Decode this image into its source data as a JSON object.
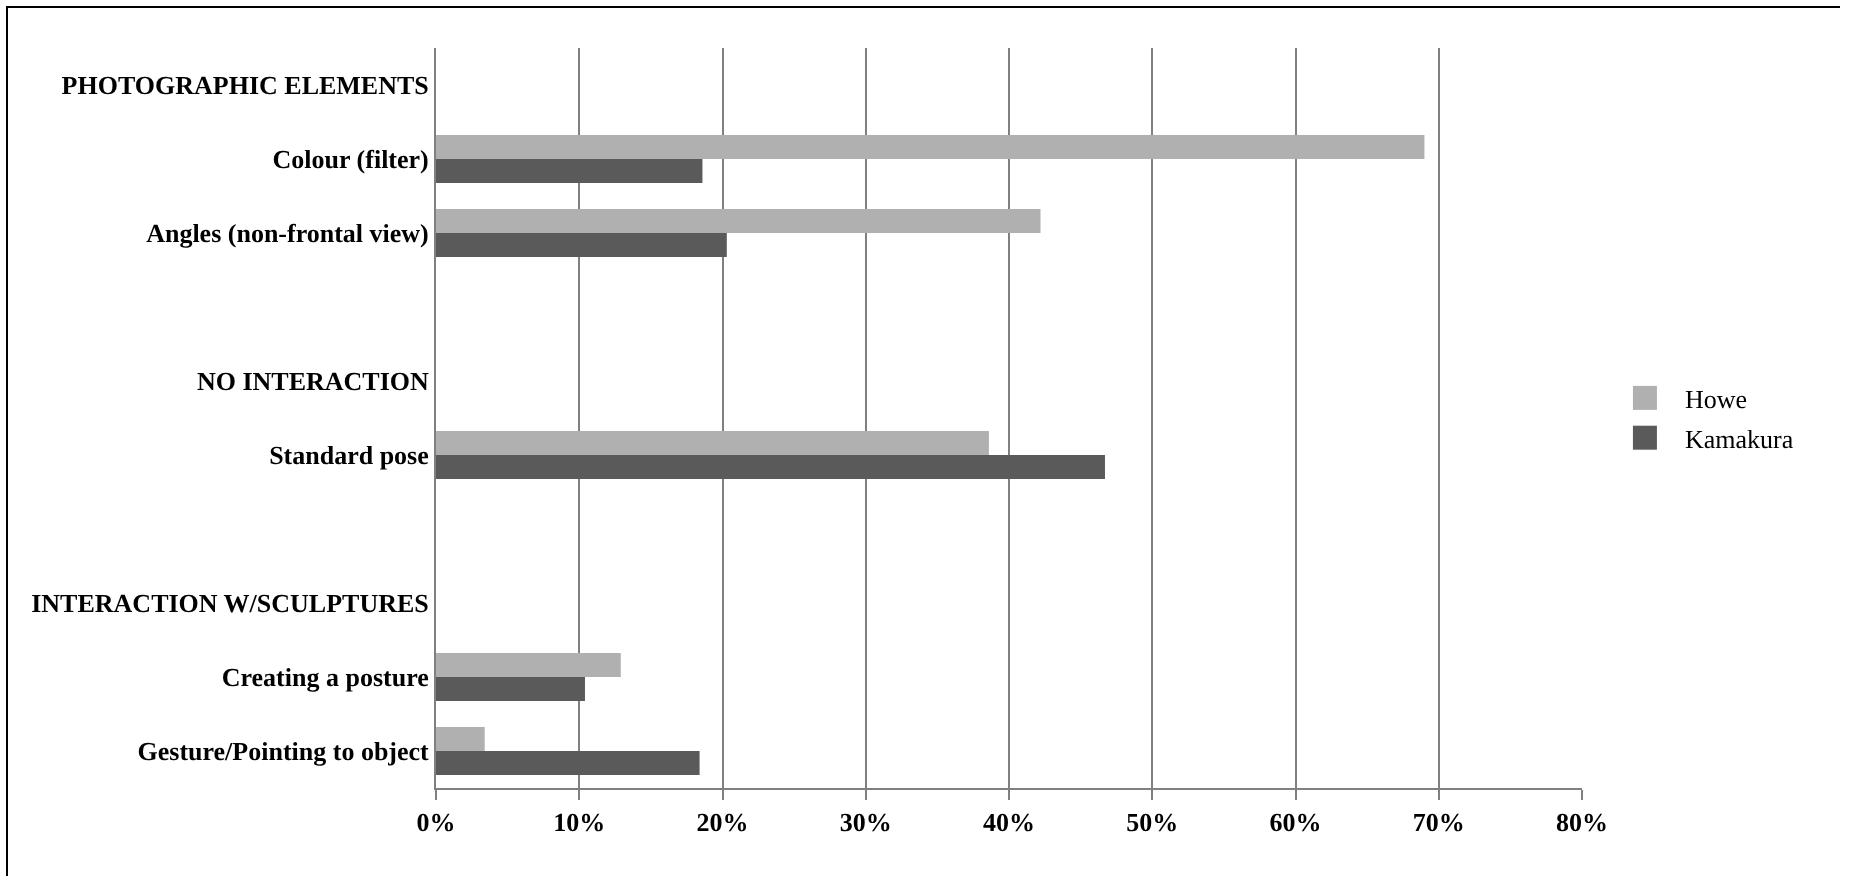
{
  "chart_data": {
    "type": "bar",
    "orientation": "horizontal",
    "categories": [
      "PHOTOGRAPHIC ELEMENTS",
      "Colour (filter)",
      "Angles (non-frontal view)",
      null,
      "NO INTERACTION",
      "Standard pose",
      null,
      "INTERACTION W/SCULPTURES",
      "Creating a posture",
      "Gesture/Pointing to object"
    ],
    "series": [
      {
        "name": "Howe",
        "color": "#b0b0b0",
        "values": [
          null,
          69,
          42.2,
          null,
          null,
          38.6,
          null,
          null,
          12.9,
          3.4
        ]
      },
      {
        "name": "Kamakura",
        "color": "#5a5a5a",
        "values": [
          null,
          18.6,
          20.3,
          null,
          null,
          46.7,
          null,
          null,
          10.4,
          18.4
        ]
      }
    ],
    "xlim": [
      0,
      80
    ],
    "xticks": [
      {
        "value": 0,
        "label": "0%"
      },
      {
        "value": 10,
        "label": "10%"
      },
      {
        "value": 20,
        "label": "20%"
      },
      {
        "value": 30,
        "label": "30%"
      },
      {
        "value": 40,
        "label": "40%"
      },
      {
        "value": 50,
        "label": "50%"
      },
      {
        "value": 60,
        "label": "60%"
      },
      {
        "value": 70,
        "label": "70%"
      },
      {
        "value": 80,
        "label": "80%"
      }
    ],
    "grid": "x",
    "legend": "right"
  }
}
